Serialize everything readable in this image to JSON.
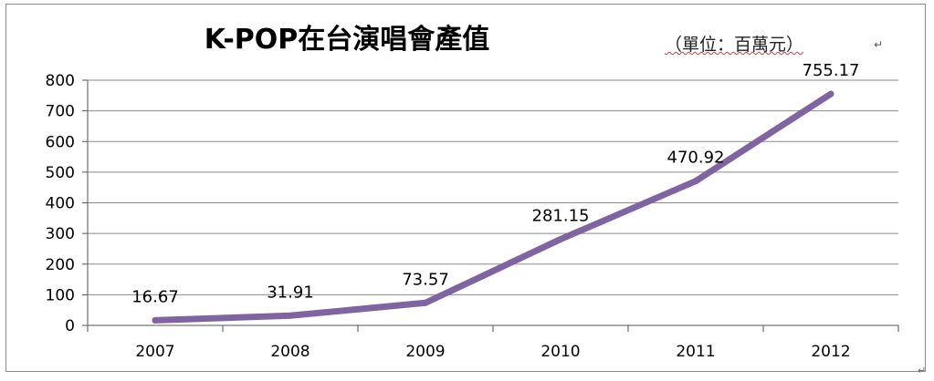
{
  "chart_data": {
    "type": "line",
    "title": "K-POP在台演唱會產值",
    "unit_note": "（單位：百萬元）",
    "categories": [
      "2007",
      "2008",
      "2009",
      "2010",
      "2011",
      "2012"
    ],
    "series": [
      {
        "values": [
          16.67,
          31.91,
          73.57,
          281.15,
          470.92,
          755.17
        ]
      }
    ],
    "data_labels": [
      "16.67",
      "31.91",
      "73.57",
      "281.15",
      "470.92",
      "755.17"
    ],
    "ylim": [
      0,
      800
    ],
    "yticks": [
      0,
      100,
      200,
      300,
      400,
      500,
      600,
      700,
      800
    ],
    "ytick_labels": [
      "0",
      "100",
      "200",
      "300",
      "400",
      "500",
      "600",
      "700",
      "800"
    ],
    "grid": true,
    "legend": "none",
    "line_color": "#8064a2"
  },
  "marks": {
    "unit_return": "↵",
    "end_return": "↵"
  }
}
